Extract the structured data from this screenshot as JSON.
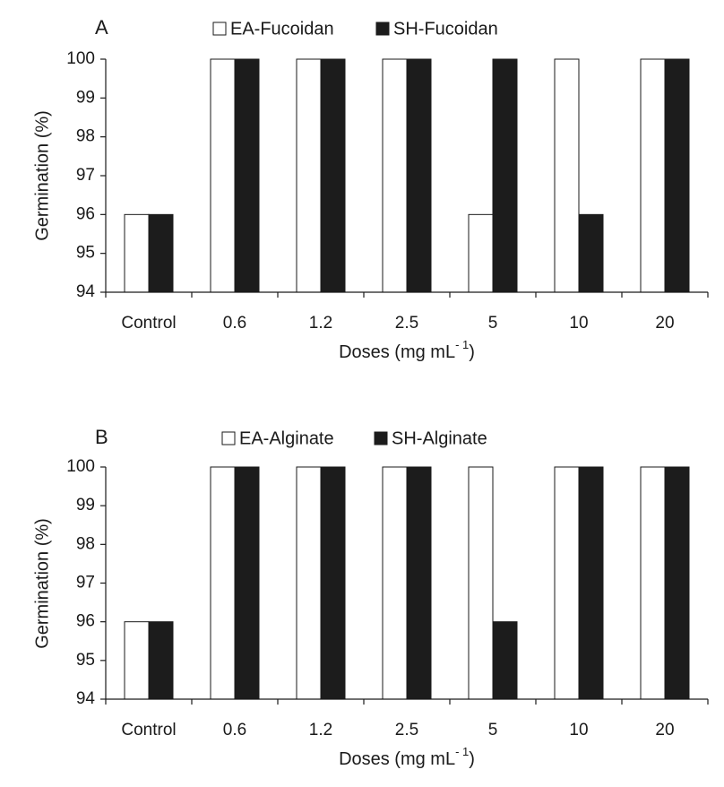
{
  "colors": {
    "series_a": "#ffffff",
    "series_b": "#1c1c1c",
    "stroke": "#1a1a1a"
  },
  "chart_data": [
    {
      "type": "bar",
      "panel": "A",
      "categories": [
        "Control",
        "0.6",
        "1.2",
        "2.5",
        "5",
        "10",
        "20"
      ],
      "series": [
        {
          "name": "EA-Fucoidan",
          "values": [
            96,
            100,
            100,
            100,
            96,
            100,
            100
          ]
        },
        {
          "name": "SH-Fucoidan",
          "values": [
            96,
            100,
            100,
            100,
            100,
            96,
            100
          ]
        }
      ],
      "ylabel": "Germination (%)",
      "xlabel_main": "Doses (mg mL",
      "xlabel_sup": "- 1",
      "xlabel_close": ")",
      "ylim": [
        94,
        100
      ],
      "yticks": [
        94,
        95,
        96,
        97,
        98,
        99,
        100
      ],
      "legend": "top",
      "grid": false
    },
    {
      "type": "bar",
      "panel": "B",
      "categories": [
        "Control",
        "0.6",
        "1.2",
        "2.5",
        "5",
        "10",
        "20"
      ],
      "series": [
        {
          "name": "EA-Alginate",
          "values": [
            96,
            100,
            100,
            100,
            100,
            100,
            100
          ]
        },
        {
          "name": "SH-Alginate",
          "values": [
            96,
            100,
            100,
            100,
            96,
            100,
            100
          ]
        }
      ],
      "ylabel": "Germination (%)",
      "xlabel_main": "Doses (mg mL",
      "xlabel_sup": "- 1",
      "xlabel_close": ")",
      "ylim": [
        94,
        100
      ],
      "yticks": [
        94,
        95,
        96,
        97,
        98,
        99,
        100
      ],
      "legend": "top",
      "grid": false
    }
  ]
}
